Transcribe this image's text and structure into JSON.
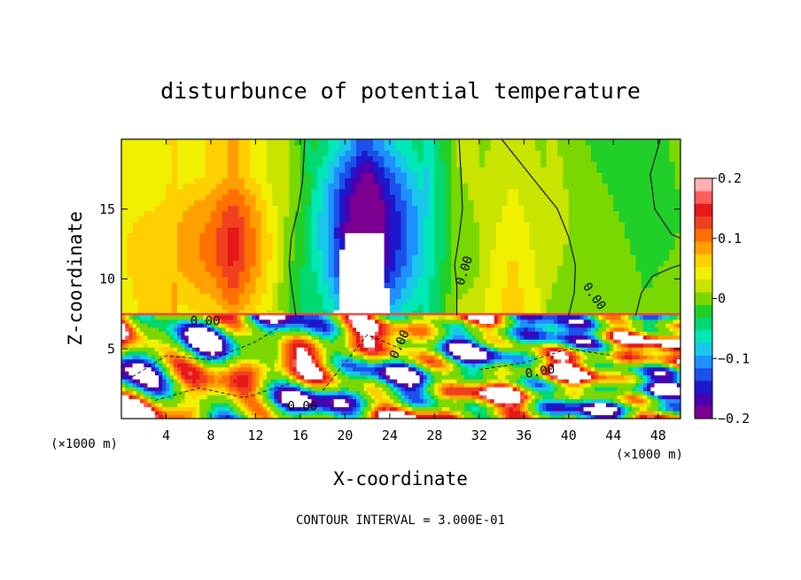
{
  "chart_data": {
    "type": "heatmap",
    "title": "disturbunce of potential temperature",
    "xlabel": "X-coordinate",
    "ylabel": "Z-coordinate",
    "x_unit": "(×1000 m)",
    "y_unit": "(×1000 m)",
    "xlim": [
      0,
      50
    ],
    "ylim": [
      0,
      20
    ],
    "x_ticks": [
      4,
      8,
      12,
      16,
      20,
      24,
      28,
      32,
      36,
      40,
      44,
      48
    ],
    "x_tick_labels": [
      "4",
      "8",
      "12",
      "16",
      "20",
      "24",
      "28",
      "32",
      "36",
      "40",
      "44",
      "48"
    ],
    "y_ticks": [
      5,
      10,
      15
    ],
    "y_tick_labels": [
      "5",
      "10",
      "15"
    ],
    "colorbar": {
      "min": -0.2,
      "max": 0.2,
      "ticks": [
        0.2,
        0.1,
        0,
        -0.1,
        -0.2
      ],
      "tick_labels": [
        "0.2",
        "0.1",
        "0",
        "−0.1",
        "−0.2"
      ],
      "colors": [
        "#7d0090",
        "#4b00b0",
        "#1c18cc",
        "#1b50ea",
        "#1e90ff",
        "#18c8e8",
        "#00e8b8",
        "#00d870",
        "#20d028",
        "#7ad800",
        "#c8e400",
        "#f0f000",
        "#ffd000",
        "#ffa000",
        "#ff7000",
        "#f04020",
        "#e81818",
        "#ff5c5c",
        "#ffb0b0"
      ]
    },
    "contour_label": "0.00",
    "contour_interval_text": "CONTOUR INTERVAL = 3.000E-01",
    "upper_layer": {
      "z_range": [
        7.4,
        20
      ],
      "columns_x": [
        0,
        4,
        8,
        10,
        12,
        15,
        18,
        21,
        22,
        24,
        28,
        30,
        32,
        35,
        38,
        40,
        44,
        47,
        50
      ],
      "columns_value": [
        0.04,
        0.06,
        0.09,
        0.13,
        0.08,
        0.0,
        -0.07,
        -0.17,
        -0.2,
        -0.13,
        -0.05,
        0.01,
        0.02,
        0.06,
        0.02,
        0.0,
        -0.01,
        -0.02,
        0.0
      ]
    },
    "lower_layer": {
      "z_range": [
        0,
        7.4
      ],
      "description_values": [
        -0.2,
        -0.1,
        0.0,
        0.1,
        0.2
      ]
    },
    "background": "#ffffff"
  }
}
